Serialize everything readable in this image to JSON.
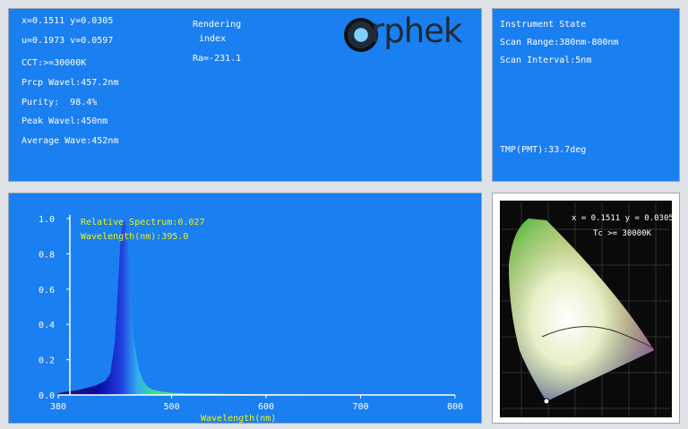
{
  "measurements": {
    "xy": "x=0.1511 y=0.0305",
    "uv": "u=0.1973 v=0.0597",
    "cct": "CCT:>=30000K",
    "prcp_wave": "Prcp Wavel:457.2nm",
    "purity": "Purity:  98.4%",
    "peak_wave": "Peak Wavel:450nm",
    "average_wave": "Average Wave:452nm",
    "rendering_label": "Rendering",
    "index_label": "index",
    "ra": "Ra=-231.1"
  },
  "logo": {
    "text": "rphek"
  },
  "instrument": {
    "title": "Instrument State",
    "scan_range": "Scan Range:380nm-800nm",
    "scan_interval": "Scan Interval:5nm",
    "tmp": "TMP(PMT):33.7deg"
  },
  "cie": {
    "coord_label": "x = 0.1511 y = 0.0305",
    "tc_label": "Tc >= 30000K"
  },
  "chart_data": {
    "type": "area",
    "readout_relative": "Relative Spectrum:0.027",
    "readout_wavelength": "Wavelength(nm):395.0",
    "xlabel": "Wavelength(nm)",
    "ylabel": "",
    "xlim": [
      380,
      800
    ],
    "ylim": [
      0,
      1.0
    ],
    "x_ticks": [
      "380",
      "500",
      "600",
      "700",
      "800"
    ],
    "y_ticks": [
      "0.0",
      "0.2",
      "0.4",
      "0.6",
      "0.8",
      "1.0"
    ],
    "grid": false,
    "series": [
      {
        "x": [
          380,
          390,
          400,
          410,
          420,
          430,
          435,
          440,
          443,
          446,
          448,
          450,
          452,
          454,
          457,
          460,
          465,
          470,
          475,
          480,
          490,
          500,
          520,
          550,
          600,
          650,
          700,
          750,
          800
        ],
        "y": [
          0.01,
          0.02,
          0.027,
          0.04,
          0.055,
          0.08,
          0.12,
          0.3,
          0.6,
          0.88,
          0.97,
          1.0,
          0.96,
          0.82,
          0.55,
          0.32,
          0.15,
          0.08,
          0.045,
          0.03,
          0.018,
          0.012,
          0.008,
          0.006,
          0.004,
          0.003,
          0.002,
          0.001,
          0.0
        ]
      }
    ]
  }
}
